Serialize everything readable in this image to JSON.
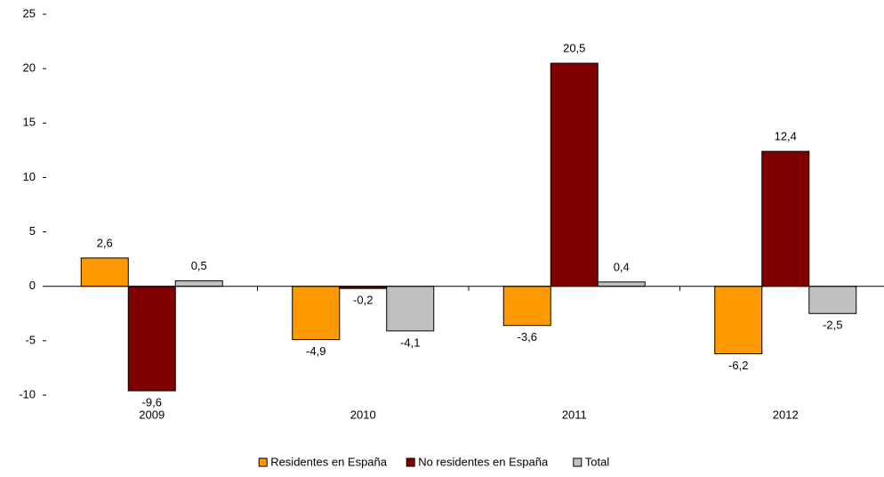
{
  "chart_data": {
    "type": "bar",
    "categories": [
      "2009",
      "2010",
      "2011",
      "2012"
    ],
    "series": [
      {
        "name": "Residentes en España",
        "color": "#ff9900",
        "values": [
          2.6,
          -4.9,
          -3.6,
          -6.2
        ],
        "value_labels": [
          "2,6",
          "-4,9",
          "-3,6",
          "-6,2"
        ]
      },
      {
        "name": "No residentes en España",
        "color": "#800000",
        "values": [
          -9.6,
          -0.2,
          20.5,
          12.4
        ],
        "value_labels": [
          "-9,6",
          "-0,2",
          "20,5",
          "12,4"
        ]
      },
      {
        "name": "Total",
        "color": "#c0c0c0",
        "values": [
          0.5,
          -4.1,
          0.4,
          -2.5
        ],
        "value_labels": [
          "0,5",
          "-4,1",
          "0,4",
          "-2,5"
        ]
      }
    ],
    "ylim": [
      -10,
      25
    ],
    "yticks": [
      -10,
      -5,
      0,
      5,
      10,
      15,
      20,
      25
    ],
    "legend": "bottom"
  }
}
